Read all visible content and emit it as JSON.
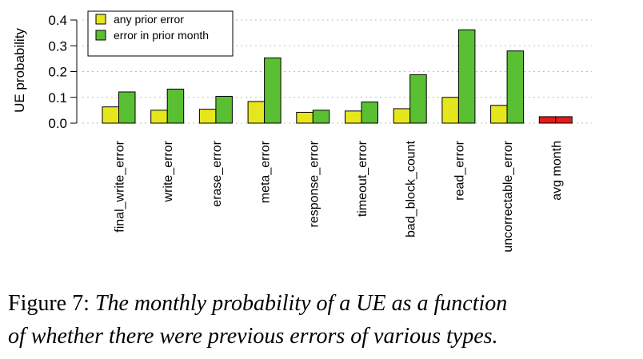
{
  "chart_data": {
    "type": "bar",
    "ylabel": "UE probability",
    "ylim": [
      0,
      0.42
    ],
    "yticks": [
      "0.0",
      "0.1",
      "0.2",
      "0.3",
      "0.4"
    ],
    "grid": true,
    "legend": "top-left",
    "categories": [
      "final_write_error",
      "write_error",
      "erase_error",
      "meta_error",
      "response_error",
      "timeout_error",
      "bad_block_count",
      "read_error",
      "uncorrectable_error",
      "avg month"
    ],
    "series": [
      {
        "name": "any prior error",
        "color": "#e6e61e",
        "values": [
          0.063,
          0.05,
          0.054,
          0.084,
          0.042,
          0.047,
          0.056,
          0.1,
          0.069,
          null
        ]
      },
      {
        "name": "error in prior month",
        "color": "#5abf32",
        "values": [
          0.121,
          0.132,
          0.104,
          0.253,
          0.05,
          0.082,
          0.188,
          0.362,
          0.28,
          null
        ]
      }
    ],
    "baseline": {
      "category": "avg month",
      "value": 0.025,
      "color": "#e41a1c"
    }
  },
  "caption": {
    "label": "Figure 7:",
    "line1": "The monthly probability of a UE as a function",
    "line2": "of whether there were previous errors of various types."
  }
}
